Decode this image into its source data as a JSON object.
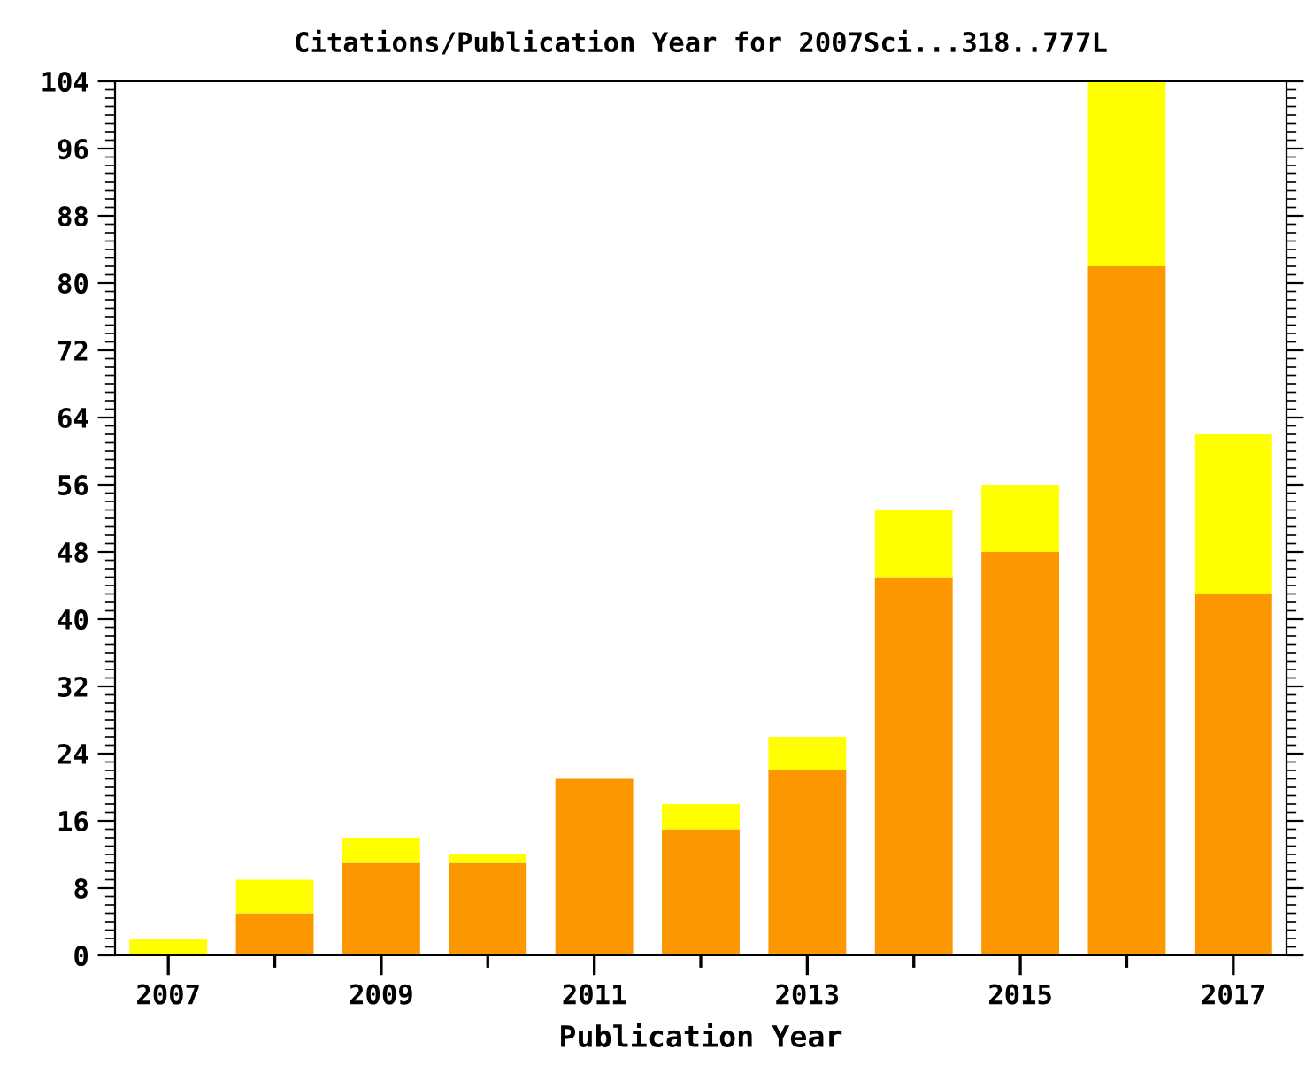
{
  "chart_data": {
    "type": "bar",
    "title": "Citations/Publication Year for 2007Sci...318..777L",
    "xlabel": "Publication Year",
    "categories": [
      "2007",
      null,
      "2009",
      null,
      "2011",
      null,
      "2013",
      null,
      "2015",
      null,
      "2017"
    ],
    "stacked": true,
    "series": [
      {
        "color": "#fc9700",
        "values": [
          0,
          5,
          11,
          11,
          21,
          15,
          22,
          45,
          48,
          82,
          43
        ]
      },
      {
        "color": "#ffff00",
        "values": [
          2,
          4,
          3,
          1,
          0,
          3,
          4,
          8,
          8,
          22,
          19
        ]
      }
    ],
    "ylim": [
      0,
      104
    ],
    "yticks": [
      0,
      8,
      16,
      24,
      32,
      40,
      48,
      56,
      64,
      72,
      80,
      88,
      96,
      104
    ],
    "grid": false
  }
}
